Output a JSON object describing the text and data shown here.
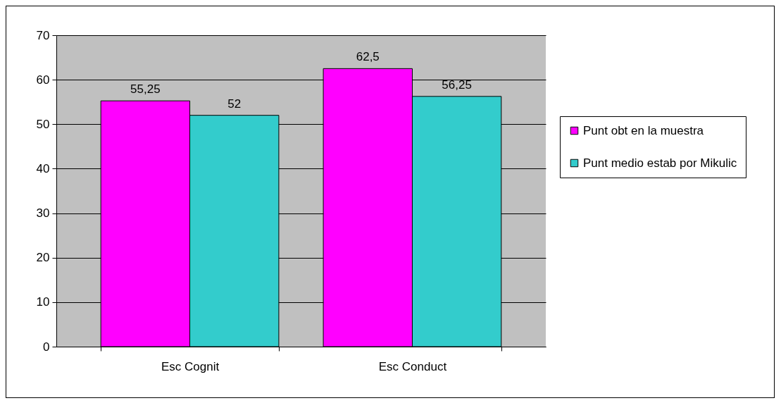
{
  "chart_data": {
    "type": "bar",
    "categories": [
      "Esc Cognit",
      "Esc Conduct"
    ],
    "series": [
      {
        "name": "Punt obt en la muestra",
        "color": "#ff00ff",
        "values": [
          55.25,
          62.5
        ],
        "value_labels": [
          "55,25",
          "62,5"
        ]
      },
      {
        "name": "Punt medio estab por Mikulic",
        "color": "#33cccc",
        "values": [
          52,
          56.25
        ],
        "value_labels": [
          "52",
          "56,25"
        ]
      }
    ],
    "ylim": [
      0,
      70
    ],
    "yticks": [
      0,
      10,
      20,
      30,
      40,
      50,
      60,
      70
    ],
    "grid": "y",
    "legend": "right"
  }
}
